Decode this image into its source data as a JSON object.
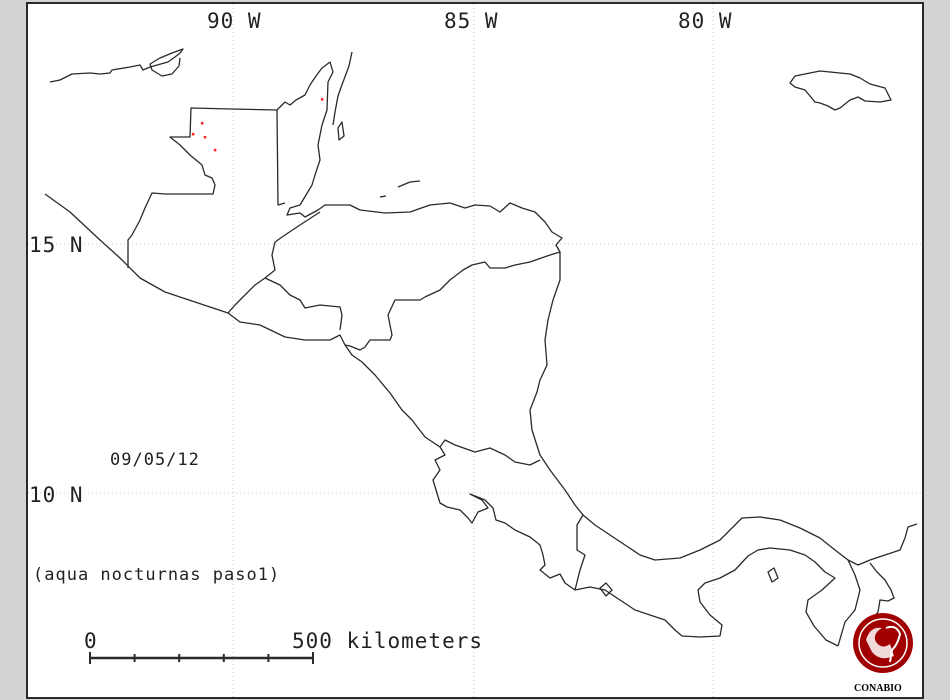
{
  "map": {
    "longitude_labels": [
      "90 W",
      "85 W",
      "80 W"
    ],
    "latitude_labels": [
      "15 N",
      "10 N"
    ],
    "date": "09/05/12",
    "subtitle": "(aqua nocturnas paso1)",
    "scale_bar": {
      "start_label": "0",
      "end_label": "500 kilometers",
      "divisions": 5
    },
    "logo_text": "CONABIO",
    "colors": {
      "hotspot": "#ff2020",
      "logo": "#a00000",
      "coast": "#2a2a2a",
      "background": "#ffffff",
      "frame": "#d3d3d3"
    },
    "hotspots": [
      {
        "lon": -90.65,
        "lat": 17.43
      },
      {
        "lon": -90.84,
        "lat": 17.21
      },
      {
        "lon": -90.59,
        "lat": 17.15
      },
      {
        "lon": -90.38,
        "lat": 16.89
      },
      {
        "lon": -88.14,
        "lat": 17.91
      }
    ]
  }
}
